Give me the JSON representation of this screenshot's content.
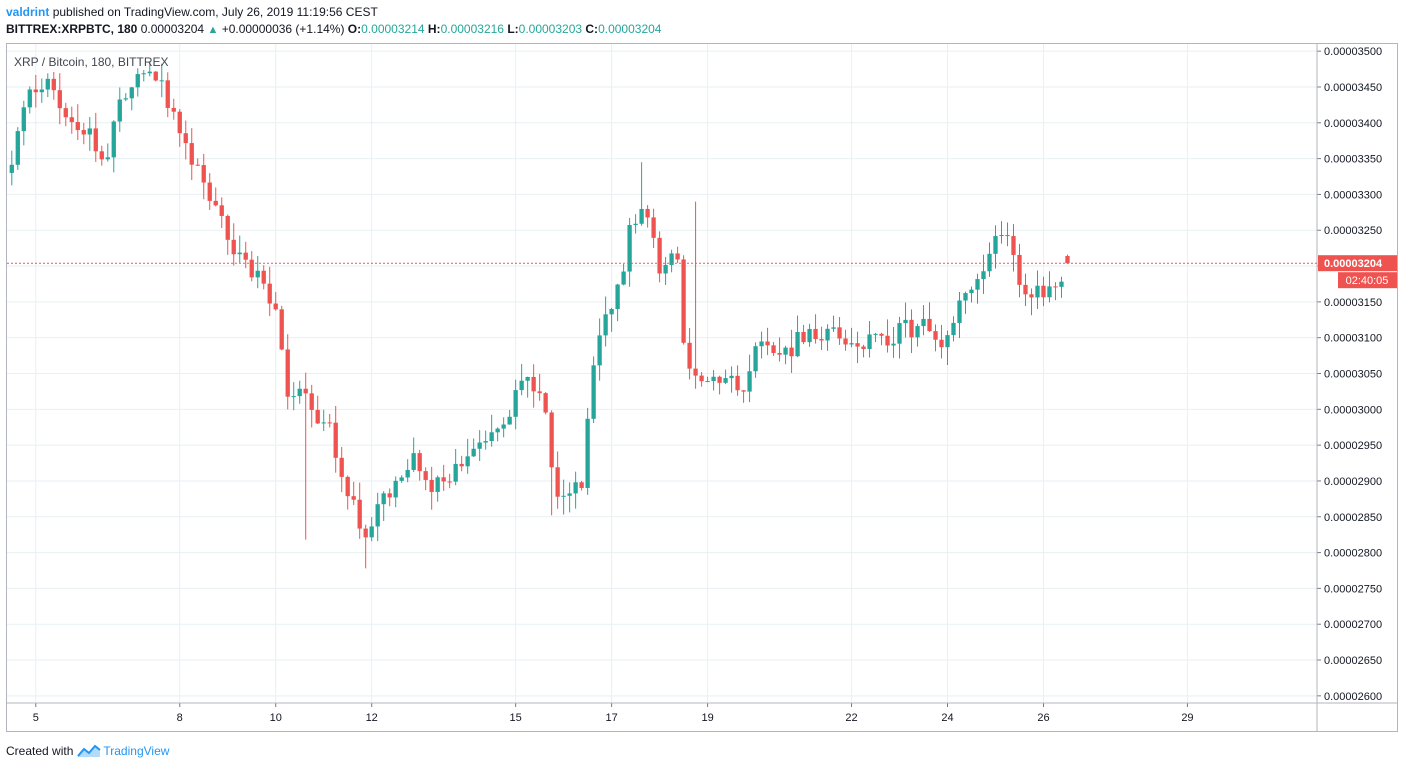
{
  "header": {
    "author": "valdrint",
    "published_text": "published on TradingView.com, July 26, 2019 11:19:56 CEST",
    "symbol": "BITTREX:XRPBTC, 180",
    "last": "0.00003204",
    "change": "+0.00000036 (+1.14%)",
    "o_label": "O:",
    "o_value": "0.00003214",
    "h_label": "H:",
    "h_value": "0.00003216",
    "l_label": "L:",
    "l_value": "0.00003203",
    "c_label": "C:",
    "c_value": "0.00003204"
  },
  "footer": {
    "created_with": "Created with",
    "brand": "TradingView"
  },
  "colors": {
    "up": "#26a69a",
    "down": "#ef5350",
    "grid": "#e9eff3",
    "price_line": "#ef5350",
    "text_blue": "#2196f3"
  },
  "chart_data": {
    "type": "candlestick",
    "title": "XRP / Bitcoin, 180, BITTREX",
    "y_ticks": [
      "0.00003500",
      "0.00003450",
      "0.00003400",
      "0.00003350",
      "0.00003300",
      "0.00003250",
      "0.00003200",
      "0.00003150",
      "0.00003100",
      "0.00003050",
      "0.00003000",
      "0.00002950",
      "0.00002900",
      "0.00002850",
      "0.00002800",
      "0.00002750",
      "0.00002700",
      "0.00002650",
      "0.00002600"
    ],
    "ylim": [
      2.59e-05,
      3.51e-05
    ],
    "x_ticks": [
      {
        "label": "5",
        "t": 0.0
      },
      {
        "label": "8",
        "t": 3.0
      },
      {
        "label": "10",
        "t": 5.0
      },
      {
        "label": "12",
        "t": 7.0
      },
      {
        "label": "15",
        "t": 10.0
      },
      {
        "label": "17",
        "t": 12.0
      },
      {
        "label": "19",
        "t": 14.0
      },
      {
        "label": "22",
        "t": 17.0
      },
      {
        "label": "24",
        "t": 19.0
      },
      {
        "label": "26",
        "t": 21.0
      },
      {
        "label": "29",
        "t": 24.0
      }
    ],
    "xlim": [
      -0.6,
      26.7
    ],
    "last_price": "0.00003204",
    "countdown": "02:40:05",
    "waypoints": [
      [
        -0.5,
        3.33e-05
      ],
      [
        -0.2,
        3.44e-05
      ],
      [
        0.3,
        3.46e-05
      ],
      [
        0.6,
        3.4e-05
      ],
      [
        1.2,
        3.38e-05
      ],
      [
        1.5,
        3.35e-05
      ],
      [
        1.7,
        3.43e-05
      ],
      [
        2.2,
        3.48e-05
      ],
      [
        2.5,
        3.47e-05
      ],
      [
        3.0,
        3.4e-05
      ],
      [
        3.4,
        3.33e-05
      ],
      [
        3.8,
        3.28e-05
      ],
      [
        4.3,
        3.2e-05
      ],
      [
        4.7,
        3.185e-05
      ],
      [
        5.0,
        3.14e-05
      ],
      [
        5.2,
        3.03e-05
      ],
      [
        5.6,
        3.01e-05
      ],
      [
        5.8,
        3e-05
      ],
      [
        6.2,
        2.96e-05
      ],
      [
        6.5,
        2.88e-05
      ],
      [
        6.7,
        2.85e-05
      ],
      [
        6.95,
        2.82e-05
      ],
      [
        7.2,
        2.88e-05
      ],
      [
        7.6,
        2.9e-05
      ],
      [
        7.9,
        2.95e-05
      ],
      [
        8.1,
        2.89e-05
      ],
      [
        8.7,
        2.91e-05
      ],
      [
        9.2,
        2.96e-05
      ],
      [
        9.7,
        2.98e-05
      ],
      [
        10.2,
        3.04e-05
      ],
      [
        10.6,
        3.02e-05
      ],
      [
        10.8,
        2.89e-05
      ],
      [
        11.4,
        2.9e-05
      ],
      [
        11.6,
        3.05e-05
      ],
      [
        11.9,
        3.13e-05
      ],
      [
        12.2,
        3.18e-05
      ],
      [
        12.4,
        3.26e-05
      ],
      [
        12.8,
        3.27e-05
      ],
      [
        13.0,
        3.2e-05
      ],
      [
        13.4,
        3.21e-05
      ],
      [
        13.5,
        3.08e-05
      ],
      [
        13.8,
        3.03e-05
      ],
      [
        14.4,
        3.04e-05
      ],
      [
        14.8,
        3.03e-05
      ],
      [
        15.1,
        3.11e-05
      ],
      [
        15.6,
        3.08e-05
      ],
      [
        16.0,
        3.1e-05
      ],
      [
        16.6,
        3.11e-05
      ],
      [
        17.2,
        3.1e-05
      ],
      [
        17.6,
        3.09e-05
      ],
      [
        18.1,
        3.11e-05
      ],
      [
        18.6,
        3.12e-05
      ],
      [
        19.0,
        3.09e-05
      ],
      [
        19.2,
        3.15e-05
      ],
      [
        19.5,
        3.17e-05
      ],
      [
        19.8,
        3.2e-05
      ],
      [
        20.1,
        3.26e-05
      ],
      [
        20.3,
        3.24e-05
      ],
      [
        20.5,
        3.17e-05
      ],
      [
        20.9,
        3.16e-05
      ],
      [
        21.2,
        3.17e-05
      ],
      [
        21.5,
        3.19e-05
      ],
      [
        21.6,
        3.204e-05
      ]
    ]
  }
}
